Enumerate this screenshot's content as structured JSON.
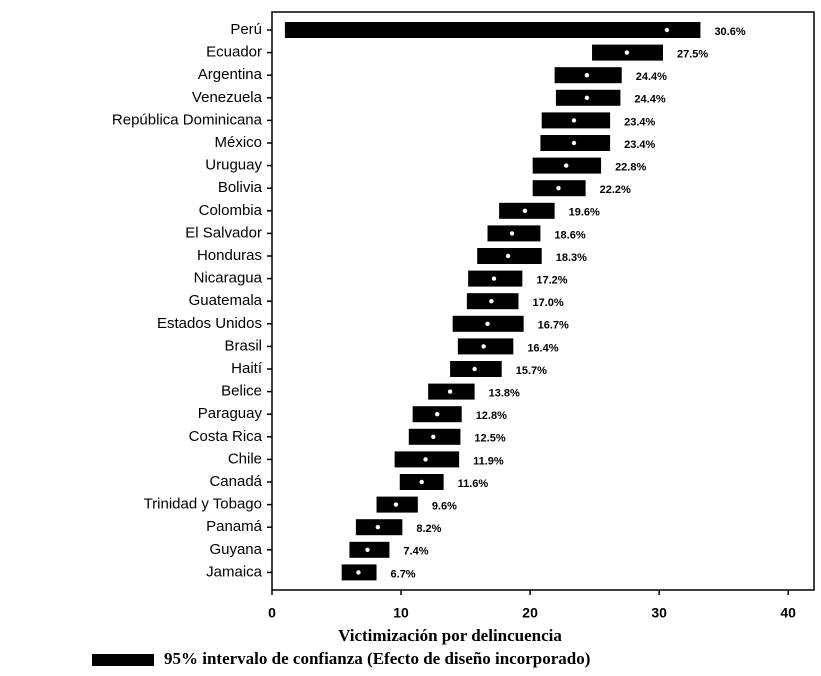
{
  "chart_data": {
    "type": "dot-interval",
    "x_label": "Victimización por delincuencia",
    "legend": "95% intervalo de confianza (Efecto de diseño incorporado)",
    "categories": [
      "Perú",
      "Ecuador",
      "Argentina",
      "Venezuela",
      "República Dominicana",
      "México",
      "Uruguay",
      "Bolivia",
      "Colombia",
      "El Salvador",
      "Honduras",
      "Nicaragua",
      "Guatemala",
      "Estados Unidos",
      "Brasil",
      "Haití",
      "Belice",
      "Paraguay",
      "Costa Rica",
      "Chile",
      "Canadá",
      "Trinidad y Tobago",
      "Panamá",
      "Guyana",
      "Jamaica"
    ],
    "values": [
      30.6,
      27.5,
      24.4,
      24.4,
      23.4,
      23.4,
      22.8,
      22.2,
      19.6,
      18.6,
      18.3,
      17.2,
      17.0,
      16.7,
      16.4,
      15.7,
      13.8,
      12.8,
      12.5,
      11.9,
      11.6,
      9.6,
      8.2,
      7.4,
      6.7
    ],
    "value_labels": [
      "30.6%",
      "27.5%",
      "24.4%",
      "24.4%",
      "23.4%",
      "23.4%",
      "22.8%",
      "22.2%",
      "19.6%",
      "18.6%",
      "18.3%",
      "17.2%",
      "17.0%",
      "16.7%",
      "16.4%",
      "15.7%",
      "13.8%",
      "12.8%",
      "12.5%",
      "11.9%",
      "11.6%",
      "9.6%",
      "8.2%",
      "7.4%",
      "6.7%"
    ],
    "ci_low": [
      1.0,
      24.8,
      21.9,
      22.0,
      20.9,
      20.8,
      20.2,
      20.2,
      17.6,
      16.7,
      15.9,
      15.2,
      15.1,
      14.0,
      14.4,
      13.8,
      12.1,
      10.9,
      10.6,
      9.5,
      9.9,
      8.1,
      6.5,
      6.0,
      5.4
    ],
    "ci_high": [
      33.2,
      30.3,
      27.1,
      27.0,
      26.2,
      26.2,
      25.5,
      24.3,
      21.9,
      20.8,
      20.9,
      19.4,
      19.1,
      19.5,
      18.7,
      17.8,
      15.7,
      14.7,
      14.6,
      14.5,
      13.3,
      11.3,
      10.1,
      9.1,
      8.1
    ],
    "color": "#000000",
    "xlim": [
      0,
      42
    ],
    "xticks": [
      0,
      10,
      20,
      30,
      40
    ]
  }
}
